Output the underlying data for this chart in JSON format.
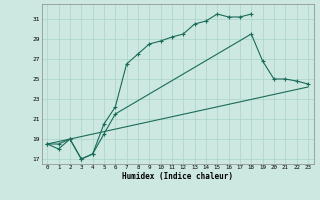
{
  "xlabel": "Humidex (Indice chaleur)",
  "bg_color": "#cce8e0",
  "grid_color": "#aad4c8",
  "line_color": "#1a6b5a",
  "xlim": [
    -0.5,
    23.5
  ],
  "ylim": [
    16.5,
    32.5
  ],
  "xticks": [
    0,
    1,
    2,
    3,
    4,
    5,
    6,
    7,
    8,
    9,
    10,
    11,
    12,
    13,
    14,
    15,
    16,
    17,
    18,
    19,
    20,
    21,
    22,
    23
  ],
  "yticks": [
    17,
    19,
    21,
    23,
    25,
    27,
    29,
    31
  ],
  "series": [
    {
      "x": [
        0,
        1,
        2,
        3,
        4,
        5,
        6,
        7,
        8,
        9,
        10,
        11,
        12,
        13,
        14,
        15,
        16,
        17,
        18
      ],
      "y": [
        18.5,
        18.5,
        19.0,
        17.0,
        17.5,
        20.5,
        22.2,
        26.5,
        27.5,
        28.5,
        28.8,
        29.2,
        29.5,
        30.5,
        30.8,
        31.5,
        31.2,
        31.2,
        31.5
      ],
      "linestyle": "-",
      "marker": true
    },
    {
      "x": [
        0,
        1,
        2,
        3,
        4,
        5,
        6,
        18,
        19,
        20,
        21,
        22,
        23
      ],
      "y": [
        18.5,
        18.0,
        19.0,
        17.0,
        17.5,
        19.5,
        21.5,
        29.5,
        26.8,
        25.0,
        25.0,
        24.8,
        24.5
      ],
      "linestyle": "-",
      "marker": true
    },
    {
      "x": [
        0,
        23
      ],
      "y": [
        18.5,
        24.2
      ],
      "linestyle": "-",
      "marker": false
    }
  ]
}
